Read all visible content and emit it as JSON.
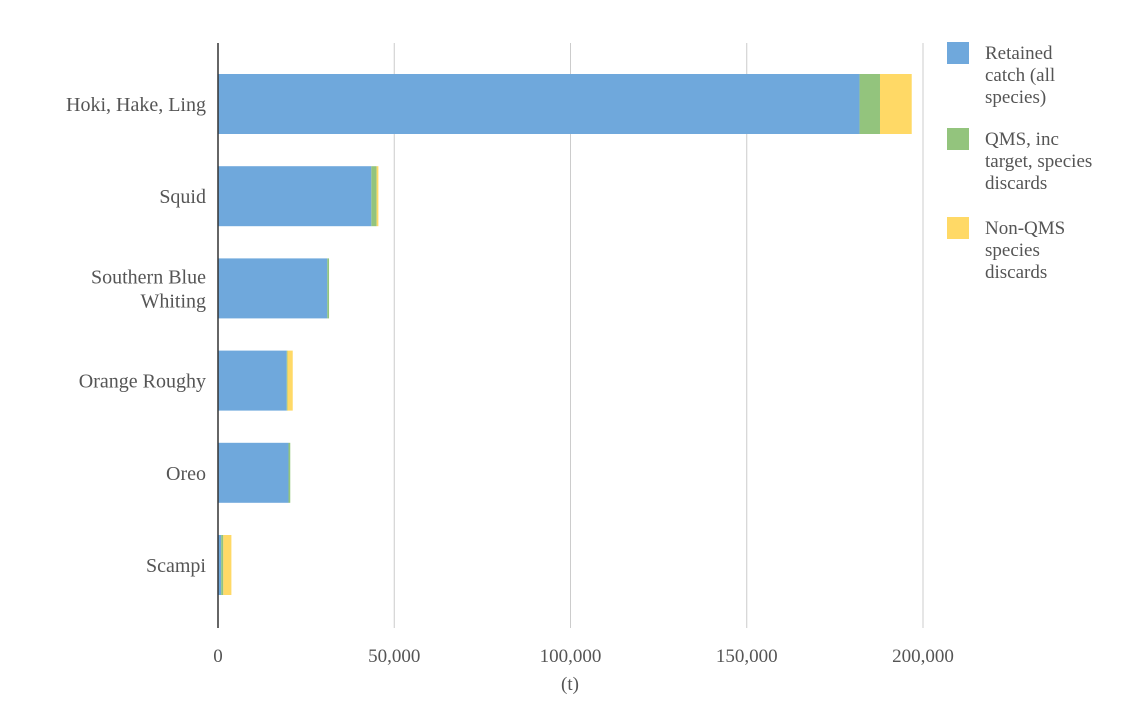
{
  "chart_data": {
    "type": "bar",
    "orientation": "horizontal",
    "stacked": true,
    "categories": [
      "Hoki, Hake, Ling",
      "Squid",
      "Southern Blue Whiting",
      "Orange Roughy",
      "Oreo",
      "Scampi"
    ],
    "category_lines": [
      [
        "Hoki, Hake, Ling"
      ],
      [
        "Squid"
      ],
      [
        "Southern Blue",
        "Whiting"
      ],
      [
        "Orange Roughy"
      ],
      [
        "Oreo"
      ],
      [
        "Scampi"
      ]
    ],
    "series": [
      {
        "name": "Retained catch (all species)",
        "legend_lines": [
          "Retained",
          "catch (all",
          "species)"
        ],
        "color": "#6fa8dc",
        "values": [
          182000,
          43500,
          31000,
          19500,
          20000,
          900
        ]
      },
      {
        "name": "QMS, inc target, species discards",
        "legend_lines": [
          "QMS, inc",
          "target, species",
          "discards"
        ],
        "color": "#93c47d",
        "values": [
          5800,
          1500,
          500,
          200,
          500,
          600
        ]
      },
      {
        "name": "Non-QMS species discards",
        "legend_lines": [
          "Non-QMS",
          "species",
          "discards"
        ],
        "color": "#ffd966",
        "values": [
          9000,
          500,
          0,
          1500,
          0,
          2300
        ]
      }
    ],
    "xlabel": "(t)",
    "ylabel": "",
    "xlim": [
      0,
      200000
    ],
    "xticks": [
      0,
      50000,
      100000,
      150000,
      200000
    ],
    "xtick_labels": [
      "0",
      "50,000",
      "100,000",
      "150,000",
      "200,000"
    ],
    "grid": "vertical",
    "legend_position": "right"
  }
}
